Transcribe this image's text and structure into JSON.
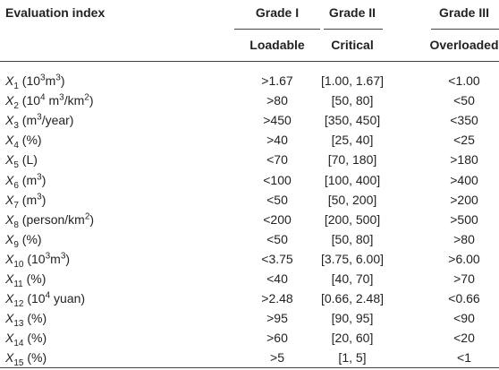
{
  "header": {
    "index": "Evaluation index",
    "grades": [
      {
        "grade": "Grade I",
        "status": "Loadable"
      },
      {
        "grade": "Grade II",
        "status": "Critical"
      },
      {
        "grade": "Grade III",
        "status": "Overloaded"
      }
    ]
  },
  "rows": [
    {
      "index": {
        "symbol": "X",
        "subscript": "1",
        "unit": [
          {
            "text": " (10"
          },
          {
            "sup": "3"
          },
          {
            "text": "m"
          },
          {
            "sup": "3"
          },
          {
            "text": ")"
          }
        ]
      },
      "values": [
        ">1.67",
        "[1.00, 1.67]",
        "<1.00"
      ]
    },
    {
      "index": {
        "symbol": "X",
        "subscript": "2",
        "unit": [
          {
            "text": " (10"
          },
          {
            "sup": "4"
          },
          {
            "text": " m"
          },
          {
            "sup": "3"
          },
          {
            "text": "/km"
          },
          {
            "sup": "2"
          },
          {
            "text": ")"
          }
        ]
      },
      "values": [
        ">80",
        "[50, 80]",
        "<50"
      ]
    },
    {
      "index": {
        "symbol": "X",
        "subscript": "3",
        "unit": [
          {
            "text": " (m"
          },
          {
            "sup": "3"
          },
          {
            "text": "/year)"
          }
        ]
      },
      "values": [
        ">450",
        "[350, 450]",
        "<350"
      ]
    },
    {
      "index": {
        "symbol": "X",
        "subscript": "4",
        "unit": [
          {
            "text": " (%)"
          }
        ]
      },
      "values": [
        ">40",
        "[25, 40]",
        "<25"
      ]
    },
    {
      "index": {
        "symbol": "X",
        "subscript": "5",
        "unit": [
          {
            "text": " (L)"
          }
        ]
      },
      "values": [
        "<70",
        "[70, 180]",
        ">180"
      ]
    },
    {
      "index": {
        "symbol": "X",
        "subscript": "6",
        "unit": [
          {
            "text": " (m"
          },
          {
            "sup": "3"
          },
          {
            "text": ")"
          }
        ]
      },
      "values": [
        "<100",
        "[100, 400]",
        ">400"
      ]
    },
    {
      "index": {
        "symbol": "X",
        "subscript": "7",
        "unit": [
          {
            "text": " (m"
          },
          {
            "sup": "3"
          },
          {
            "text": ")"
          }
        ]
      },
      "values": [
        "<50",
        "[50, 200]",
        ">200"
      ]
    },
    {
      "index": {
        "symbol": "X",
        "subscript": "8",
        "unit": [
          {
            "text": " (person/km"
          },
          {
            "sup": "2"
          },
          {
            "text": ")"
          }
        ]
      },
      "values": [
        "<200",
        "[200, 500]",
        ">500"
      ]
    },
    {
      "index": {
        "symbol": "X",
        "subscript": "9",
        "unit": [
          {
            "text": " (%)"
          }
        ]
      },
      "values": [
        "<50",
        "[50, 80]",
        ">80"
      ]
    },
    {
      "index": {
        "symbol": "X",
        "subscript": "10",
        "unit": [
          {
            "text": " (10"
          },
          {
            "sup": "3"
          },
          {
            "text": "m"
          },
          {
            "sup": "3"
          },
          {
            "text": ")"
          }
        ]
      },
      "values": [
        "<3.75",
        "[3.75, 6.00]",
        ">6.00"
      ]
    },
    {
      "index": {
        "symbol": "X",
        "subscript": "11",
        "unit": [
          {
            "text": " (%)"
          }
        ]
      },
      "values": [
        "<40",
        "[40, 70]",
        ">70"
      ]
    },
    {
      "index": {
        "symbol": "X",
        "subscript": "12",
        "unit": [
          {
            "text": " (10"
          },
          {
            "sup": "4"
          },
          {
            "text": " yuan)"
          }
        ]
      },
      "values": [
        ">2.48",
        "[0.66, 2.48]",
        "<0.66"
      ]
    },
    {
      "index": {
        "symbol": "X",
        "subscript": "13",
        "unit": [
          {
            "text": " (%)"
          }
        ]
      },
      "values": [
        ">95",
        "[90, 95]",
        "<90"
      ]
    },
    {
      "index": {
        "symbol": "X",
        "subscript": "14",
        "unit": [
          {
            "text": " (%)"
          }
        ]
      },
      "values": [
        ">60",
        "[20, 60]",
        "<20"
      ]
    },
    {
      "index": {
        "symbol": "X",
        "subscript": "15",
        "unit": [
          {
            "text": " (%)"
          }
        ]
      },
      "values": [
        ">5",
        "[1, 5]",
        "<1"
      ]
    }
  ]
}
